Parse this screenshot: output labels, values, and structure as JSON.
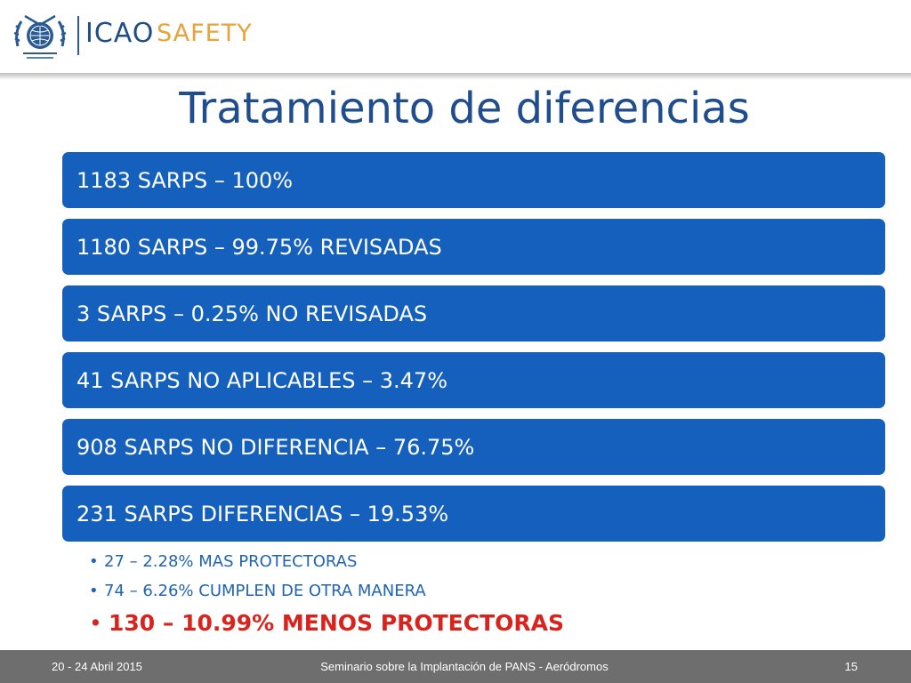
{
  "header": {
    "logo_icao": "ICAO",
    "logo_safety": "SAFETY",
    "colors": {
      "icao": "#1d4e86",
      "safety": "#e8a33a"
    }
  },
  "title": "Tratamiento de diferencias",
  "bars": [
    "1183 SARPS – 100%",
    "1180 SARPS – 99.75% REVISADAS",
    "3 SARPS – 0.25% NO REVISADAS",
    "41 SARPS NO APLICABLES – 3.47%",
    "908 SARPS NO DIFERENCIA – 76.75%",
    "231 SARPS DIFERENCIAS – 19.53%"
  ],
  "sub_items": [
    "27 – 2.28% MAS PROTECTORAS",
    "74 – 6.26% CUMPLEN DE OTRA MANERA",
    "130 – 10.99% MENOS PROTECTORAS"
  ],
  "bullet": "•",
  "colors": {
    "bar": "#1560bd",
    "title": "#1f4d8d",
    "sub_item": "#1f63b5",
    "highlight": "#d9231c",
    "footer": "#6e6e6e"
  },
  "footer": {
    "date": "20 - 24 Abril 2015",
    "event": "Seminario sobre la Implantación de PANS - Aeródromos",
    "page": "15"
  }
}
